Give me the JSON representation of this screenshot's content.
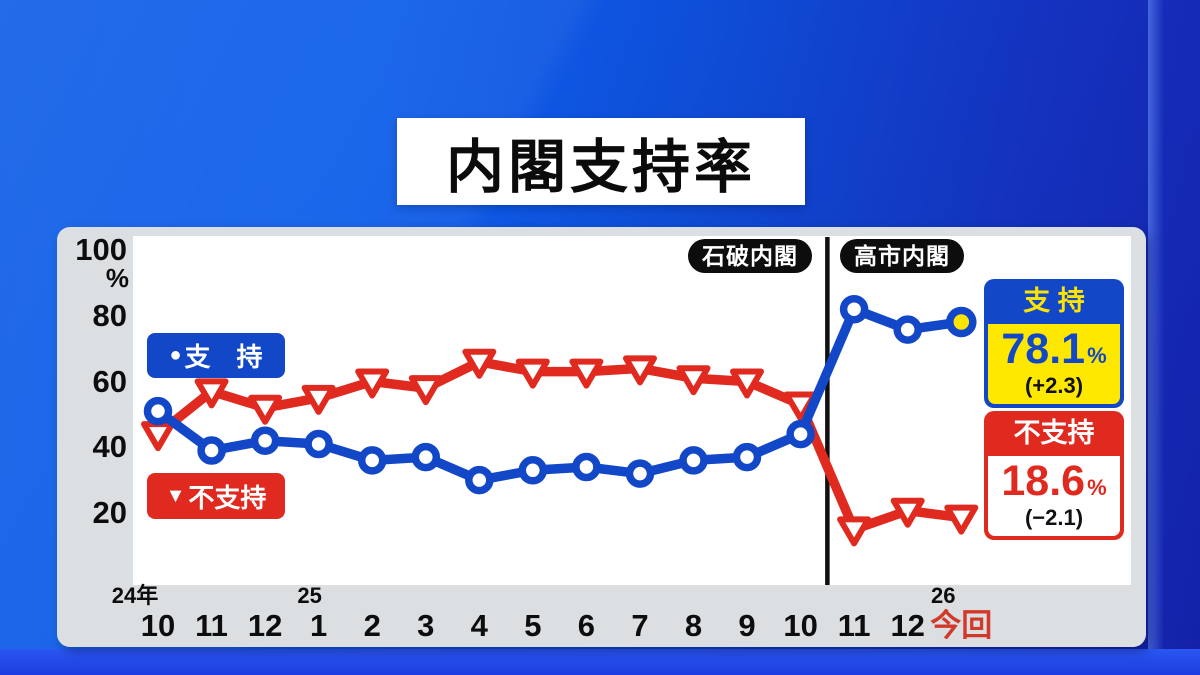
{
  "title": "内閣支持率",
  "y_axis": {
    "unit": "%",
    "ticks": [
      100,
      80,
      60,
      40,
      20
    ]
  },
  "x_axis": {
    "months": [
      "10",
      "11",
      "12",
      "1",
      "2",
      "3",
      "4",
      "5",
      "6",
      "7",
      "8",
      "9",
      "10",
      "11",
      "12",
      "今回"
    ],
    "year_markers": [
      {
        "label": "24年",
        "index": 0
      },
      {
        "label": "25",
        "index": 3
      },
      {
        "label": "26",
        "index": 15
      }
    ],
    "current_label_color": "#d13a2a"
  },
  "period_badges": [
    {
      "label": "石破内閣"
    },
    {
      "label": "高市内閣"
    }
  ],
  "legend": [
    {
      "icon": "●",
      "label": "支　持",
      "color": "#1247c8"
    },
    {
      "icon": "▼",
      "label": "不支持",
      "color": "#e02a20"
    }
  ],
  "info_boxes": {
    "support": {
      "title": "支 持",
      "value": "78.1",
      "unit": "%",
      "change": "(+2.3)"
    },
    "oppose": {
      "title": "不支持",
      "value": "18.6",
      "unit": "%",
      "change": "(−2.1)"
    }
  },
  "chart_data": {
    "type": "line",
    "title": "内閣支持率",
    "ylabel": "%",
    "ylim": [
      0,
      100
    ],
    "grid": false,
    "categories": [
      "10",
      "11",
      "12",
      "1",
      "2",
      "3",
      "4",
      "5",
      "6",
      "7",
      "8",
      "9",
      "10",
      "11",
      "12",
      "今回"
    ],
    "series": [
      {
        "name": "支持",
        "marker": "circle",
        "color": "#1247c8",
        "values": [
          51,
          39,
          42,
          41,
          36,
          37,
          30,
          33,
          34,
          32,
          36,
          37,
          44,
          82,
          75.8,
          78.1
        ]
      },
      {
        "name": "不支持",
        "marker": "triangle-down",
        "color": "#e02a20",
        "values": [
          44,
          57,
          52,
          55,
          60,
          58,
          66,
          63,
          63,
          64,
          61,
          60,
          53,
          15,
          20.7,
          18.6
        ]
      }
    ],
    "divider_after_index": 12,
    "divider_labels": [
      "石破内閣",
      "高市内閣"
    ],
    "highlight_last_point": true,
    "highlight_color": "#ffe400",
    "latest": {
      "support": 78.1,
      "support_change": 2.3,
      "oppose": 18.6,
      "oppose_change": -2.1
    }
  }
}
